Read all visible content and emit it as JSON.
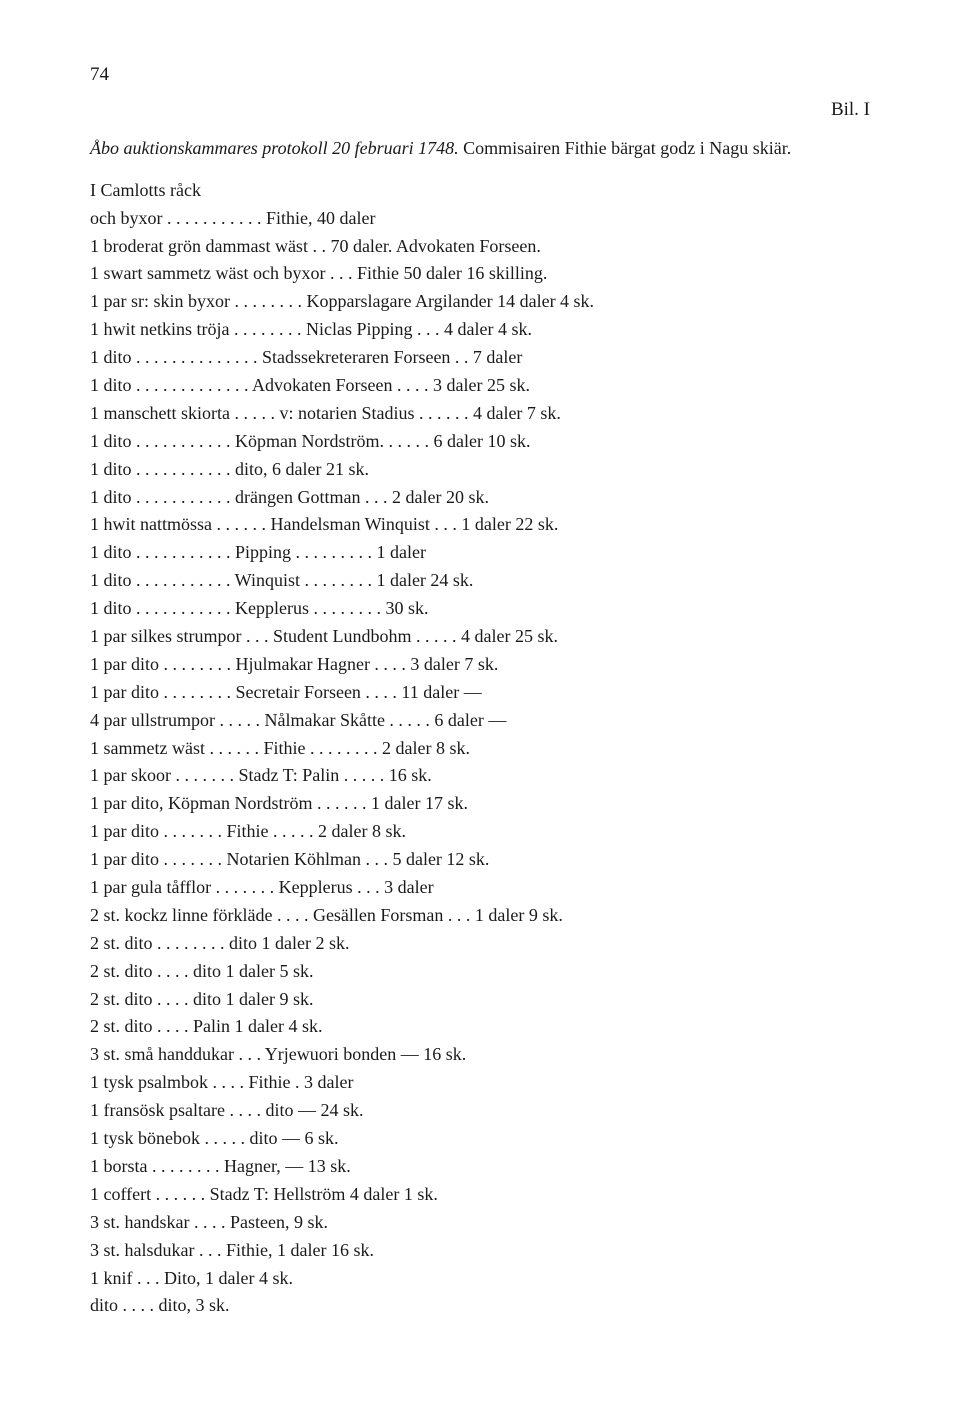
{
  "page_number": "74",
  "bil_label": "Bil. I",
  "title_italic": "Åbo auktionskammares protokoll 20 februari 1748.",
  "title_rest": " Commisairen Fithie bärgat godz i Nagu skiär.",
  "lines": [
    "I Camlotts råck",
    "och byxor . . . . . . . . . . . Fithie, 40 daler",
    "1 broderat grön dammast wäst . . 70 daler. Advokaten Forseen.",
    "1 swart sammetz wäst och byxor . . . Fithie 50 daler 16 skilling.",
    "1 par sr: skin byxor . . . . . . . . Kopparslagare Argilander 14 daler 4 sk.",
    "1 hwit netkins tröja . . . . . . . . Niclas Pipping . . . 4 daler 4 sk.",
    "1 dito . . . . . . . . . . . . . . Stadssekreteraren Forseen . . 7 daler",
    "1 dito . . . . . . . . . . . . . Advokaten Forseen . . . . 3 daler 25 sk.",
    "1 manschett skiorta . . . . . v: notarien Stadius . . . . . . 4 daler 7 sk.",
    "1 dito . . . . . . . . . . . Köpman Nordström. . . . . . 6 daler 10 sk.",
    "1 dito . . . . . . . . . . . dito, 6 daler 21 sk.",
    "1 dito . . . . . . . . . . . drängen Gottman . . . 2 daler 20 sk.",
    "1 hwit nattmössa . . . . . . Handelsman Winquist . . . 1 daler 22 sk.",
    "1 dito . . . . . . . . . . . Pipping . . . . . . . . . 1 daler",
    "1 dito . . . . . . . . . . . Winquist . . . . . . . . 1 daler 24 sk.",
    "1 dito . . . . . . . . . . . Kepplerus . . . . . . . . 30 sk.",
    "1 par silkes strumpor   . . . Student Lundbohm . . . . . 4 daler 25 sk.",
    "1 par dito . . . . . . . . Hjulmakar Hagner . . . . 3 daler 7 sk.",
    "1 par dito . . . . . . . . Secretair Forseen . . . .   11 daler —",
    "4 par ullstrumpor . . . . . Nålmakar Skåtte . . . . . 6 daler —",
    "1 sammetz wäst . . . . . . Fithie . . . . . . . . 2 daler 8 sk.",
    "1 par skoor   . . . . . . . Stadz T: Palin . . . . . 16 sk.",
    "1 par dito, Köpman Nordström . . . . . . 1 daler 17 sk.",
    "1 par dito . . . . . . . Fithie . . . . . 2 daler 8 sk.",
    "1 par dito . . . . . . . Notarien Köhlman . . . 5 daler 12 sk.",
    "1 par gula tåfflor . . . . . . . Kepplerus . . . 3 daler",
    "2 st. kockz linne förkläde   . . . . Gesällen Forsman . . . 1 daler 9 sk.",
    "2 st. dito . . . . . . . . dito 1 daler 2 sk.",
    "2 st. dito . . . . dito 1 daler 5 sk.",
    "2 st. dito . . . . dito 1 daler 9 sk.",
    "2 st. dito . . . . Palin 1 daler 4 sk.",
    "3 st. små handdukar . . . Yrjewuori bonden — 16 sk.",
    "1 tysk psalmbok . . . . Fithie . 3 daler",
    "1 fransösk psaltare . . . . dito — 24 sk.",
    "1 tysk bönebok . . . . . dito — 6 sk.",
    "1 borsta . . . . . . . . Hagner, — 13 sk.",
    "1 coffert . . . . . . Stadz T: Hellström 4 daler 1 sk.",
    "3 st. handskar . . . . Pasteen, 9 sk.",
    "3 st. halsdukar . . . Fithie, 1 daler 16 sk.",
    "1 knif . . . Dito, 1 daler 4 sk.",
    "dito . . . . dito,         3 sk."
  ]
}
